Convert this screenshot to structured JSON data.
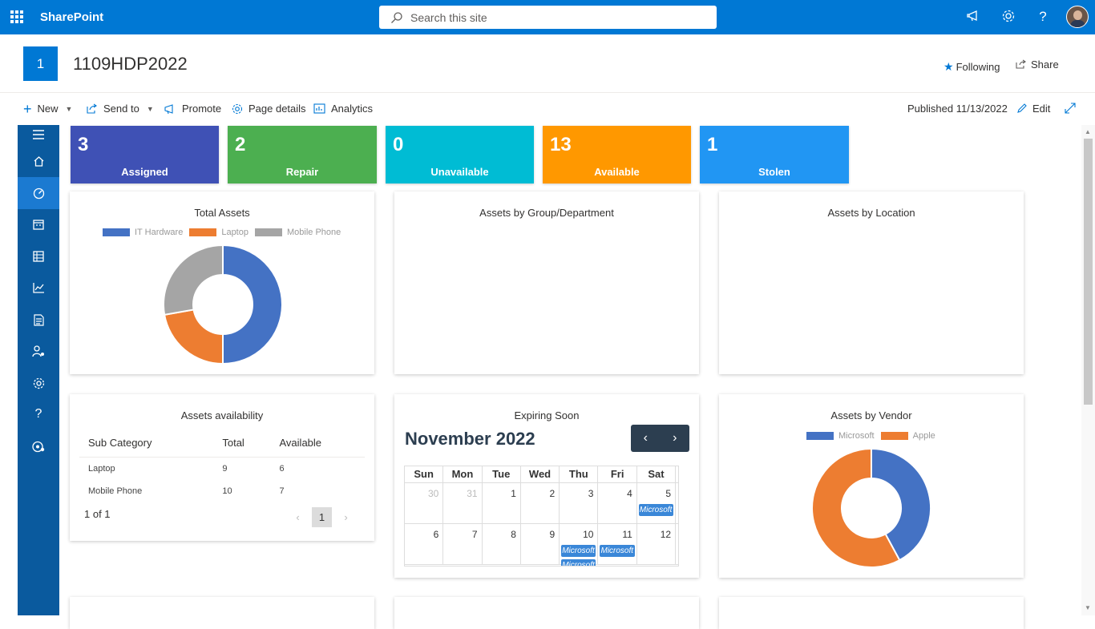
{
  "suite": {
    "brand": "SharePoint",
    "search_placeholder": "Search this site"
  },
  "site": {
    "logo_letter": "1",
    "title": "1109HDP2022",
    "following_label": "Following",
    "share_label": "Share"
  },
  "commands": {
    "new": "New",
    "send_to": "Send to",
    "promote": "Promote",
    "page_details": "Page details",
    "analytics": "Analytics",
    "published": "Published 11/13/2022",
    "edit": "Edit"
  },
  "nav_items": [
    "menu-icon",
    "home-icon",
    "dashboard-icon",
    "calendar-icon",
    "table-icon",
    "chart-icon",
    "report-icon",
    "user-icon",
    "settings-icon",
    "help-icon",
    "asset-icon"
  ],
  "stats": [
    {
      "value": "3",
      "label": "Assigned",
      "color": "#3f51b5"
    },
    {
      "value": "2",
      "label": "Repair",
      "color": "#4caf50"
    },
    {
      "value": "0",
      "label": "Unavailable",
      "color": "#00bcd4"
    },
    {
      "value": "13",
      "label": "Available",
      "color": "#ff9800"
    },
    {
      "value": "1",
      "label": "Stolen",
      "color": "#2196f3"
    }
  ],
  "cards": {
    "total_assets": "Total Assets",
    "by_group": "Assets by Group/Department",
    "by_location": "Assets by Location",
    "availability": "Assets availability",
    "expiring": "Expiring Soon",
    "by_vendor": "Assets by Vendor"
  },
  "chart_data": [
    {
      "type": "pie",
      "title": "Total Assets",
      "categories": [
        "IT Hardware",
        "Laptop",
        "Mobile Phone"
      ],
      "values": [
        9,
        4,
        5
      ],
      "colors": [
        "#4472c4",
        "#ed7d31",
        "#a5a5a5"
      ],
      "legend": "top"
    },
    {
      "type": "pie",
      "title": "Assets by Vendor",
      "categories": [
        "Microsoft",
        "Apple"
      ],
      "values": [
        8,
        11
      ],
      "colors": [
        "#4472c4",
        "#ed7d31"
      ],
      "legend": "top"
    }
  ],
  "availability_table": {
    "headers": [
      "Sub Category",
      "Total",
      "Available"
    ],
    "rows": [
      [
        "Laptop",
        "9",
        "6"
      ],
      [
        "Mobile Phone",
        "10",
        "7"
      ]
    ],
    "pager_info": "1 of 1",
    "current_page": "1"
  },
  "calendar": {
    "month": "November 2022",
    "days": [
      "Sun",
      "Mon",
      "Tue",
      "Wed",
      "Thu",
      "Fri",
      "Sat"
    ],
    "week1": [
      "30",
      "31",
      "1",
      "2",
      "3",
      "4",
      "5"
    ],
    "week2": [
      "6",
      "7",
      "8",
      "9",
      "10",
      "11",
      "12"
    ],
    "event_label": "Microsoft"
  }
}
